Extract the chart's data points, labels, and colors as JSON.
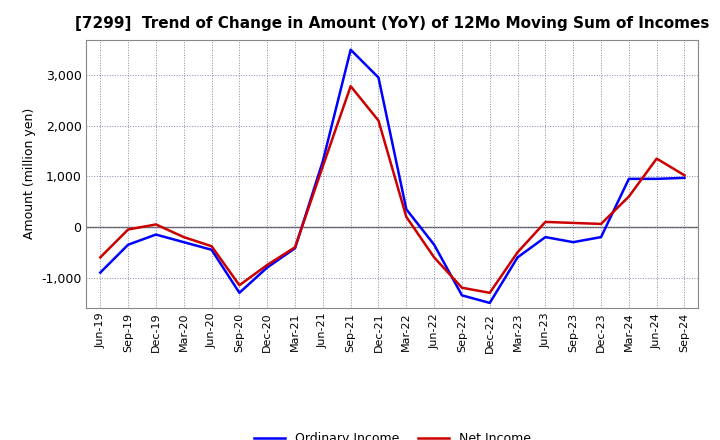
{
  "title": "[7299]  Trend of Change in Amount (YoY) of 12Mo Moving Sum of Incomes",
  "ylabel": "Amount (million yen)",
  "background_color": "#ffffff",
  "grid_color": "#b0b0b0",
  "x_labels": [
    "Jun-19",
    "Sep-19",
    "Dec-19",
    "Mar-20",
    "Jun-20",
    "Sep-20",
    "Dec-20",
    "Mar-21",
    "Jun-21",
    "Sep-21",
    "Dec-21",
    "Mar-22",
    "Jun-22",
    "Sep-22",
    "Dec-22",
    "Mar-23",
    "Jun-23",
    "Sep-23",
    "Dec-23",
    "Mar-24",
    "Jun-24",
    "Sep-24"
  ],
  "ordinary_income": [
    -900,
    -350,
    -150,
    -300,
    -450,
    -1300,
    -800,
    -420,
    1300,
    3500,
    2950,
    350,
    -350,
    -1350,
    -1500,
    -600,
    -200,
    -300,
    -200,
    950,
    950,
    970
  ],
  "net_income": [
    -600,
    -50,
    50,
    -200,
    -380,
    -1150,
    -750,
    -400,
    1200,
    2780,
    2100,
    200,
    -600,
    -1200,
    -1300,
    -500,
    100,
    80,
    60,
    600,
    1350,
    1020
  ],
  "ordinary_color": "#0000ff",
  "net_color": "#cc0000",
  "ylim": [
    -1600,
    3700
  ],
  "yticks": [
    -1000,
    0,
    1000,
    2000,
    3000
  ],
  "legend_labels": [
    "Ordinary Income",
    "Net Income"
  ],
  "line_width": 1.8
}
